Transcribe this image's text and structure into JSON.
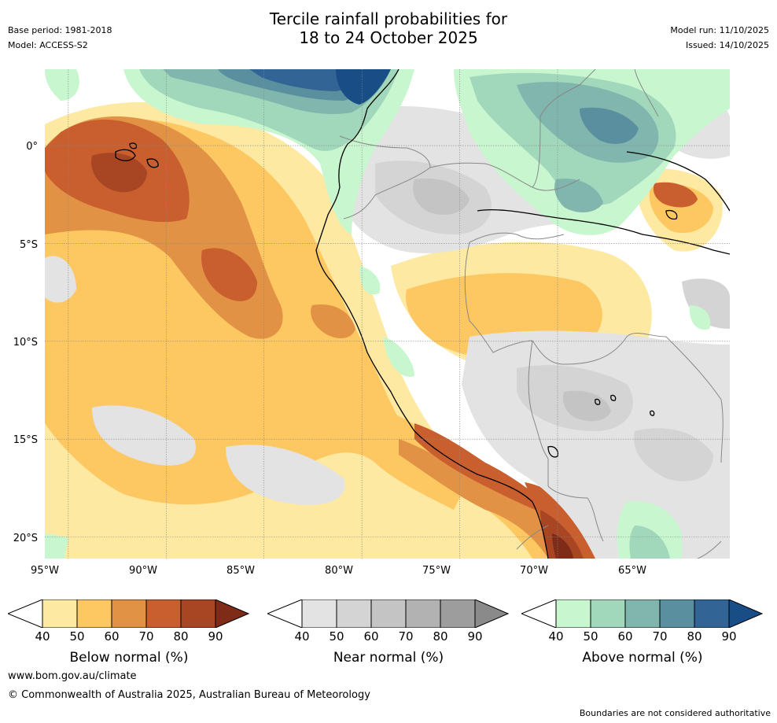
{
  "header": {
    "title_line1": "Tercile rainfall probabilities for",
    "title_line2": "18 to 24 October 2025",
    "base_period": "Base period: 1981-2018",
    "model": "Model: ACCESS-S2",
    "model_run": "Model run: 11/10/2025",
    "issued": "Issued: 14/10/2025"
  },
  "map": {
    "lat_labels": [
      "0°",
      "5°S",
      "10°S",
      "15°S",
      "20°S"
    ],
    "lon_labels": [
      "95°W",
      "90°W",
      "85°W",
      "80°W",
      "75°W",
      "70°W",
      "65°W"
    ],
    "colors": {
      "below": [
        "#fde9a1",
        "#fdc761",
        "#e19244",
        "#c95f2e",
        "#a84624",
        "#7e2b17"
      ],
      "near": [
        "#e3e3e3",
        "#d4d4d4",
        "#c4c4c4",
        "#b2b2b2",
        "#9d9d9d",
        "#8a8a8a"
      ],
      "above": [
        "#c8f6cf",
        "#a1d8bc",
        "#80b6ad",
        "#5a8fa0",
        "#326596",
        "#184d86"
      ],
      "land_border": "#888888",
      "coastline": "#000000"
    }
  },
  "colorbars": [
    {
      "title": "Below normal (%)",
      "ticks": [
        "40",
        "50",
        "60",
        "70",
        "80",
        "90"
      ]
    },
    {
      "title": "Near normal (%)",
      "ticks": [
        "40",
        "50",
        "60",
        "70",
        "80",
        "90"
      ]
    },
    {
      "title": "Above normal (%)",
      "ticks": [
        "40",
        "50",
        "60",
        "70",
        "80",
        "90"
      ]
    }
  ],
  "footer": {
    "website": "www.bom.gov.au/climate",
    "copyright": "© Commonwealth of Australia 2025, Australian Bureau of Meteorology",
    "disclaimer": "Boundaries are not considered authoritative"
  }
}
